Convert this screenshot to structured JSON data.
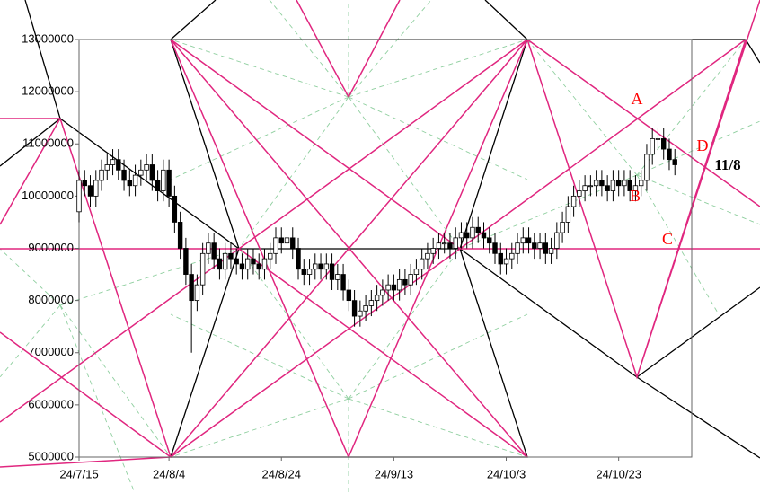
{
  "chart_data": {
    "type": "candlestick",
    "x": [
      "24/7/19",
      "24/7/20",
      "24/7/21",
      "24/7/22",
      "24/7/23",
      "24/7/24",
      "24/7/25",
      "24/7/26",
      "24/7/27",
      "24/7/28",
      "24/7/29",
      "24/7/30",
      "24/7/31",
      "24/8/1",
      "24/8/2",
      "24/8/3",
      "24/8/4",
      "24/8/5",
      "24/8/6",
      "24/8/7",
      "24/8/8",
      "24/8/9",
      "24/8/10",
      "24/8/11",
      "24/8/12",
      "24/8/13",
      "24/8/14",
      "24/8/15",
      "24/8/16",
      "24/8/17",
      "24/8/18",
      "24/8/19",
      "24/8/20",
      "24/8/21",
      "24/8/22",
      "24/8/23",
      "24/8/24",
      "24/8/25",
      "24/8/26",
      "24/8/27",
      "24/8/28",
      "24/8/29",
      "24/8/30",
      "24/8/31",
      "24/9/1",
      "24/9/2",
      "24/9/3",
      "24/9/4",
      "24/9/5",
      "24/9/6",
      "24/9/7",
      "24/9/8",
      "24/9/9",
      "24/9/10",
      "24/9/11",
      "24/9/12",
      "24/9/13",
      "24/9/14",
      "24/9/15",
      "24/9/16",
      "24/9/17",
      "24/9/18",
      "24/9/19",
      "24/9/20",
      "24/9/21",
      "24/9/22",
      "24/9/23",
      "24/9/24",
      "24/9/25",
      "24/9/26",
      "24/9/27",
      "24/9/28",
      "24/9/29",
      "24/9/30",
      "24/10/1",
      "24/10/2",
      "24/10/3",
      "24/10/4",
      "24/10/5",
      "24/10/6",
      "24/10/7",
      "24/10/8",
      "24/10/9",
      "24/10/10",
      "24/10/11",
      "24/10/12",
      "24/10/13",
      "24/10/14",
      "24/10/15",
      "24/10/16",
      "24/10/17",
      "24/10/18",
      "24/10/19",
      "24/10/20",
      "24/10/21",
      "24/10/22",
      "24/10/23",
      "24/10/24",
      "24/10/25",
      "24/10/26",
      "24/10/27",
      "24/10/28",
      "24/10/29",
      "24/10/30",
      "24/10/31",
      "24/11/1",
      "24/11/2"
    ],
    "open": [
      9700000,
      10300000,
      10200000,
      10000000,
      10300000,
      10500000,
      10600000,
      10700000,
      10500000,
      10300000,
      10200000,
      10400000,
      10500000,
      10600000,
      10300000,
      10100000,
      10500000,
      10000000,
      9500000,
      9000000,
      8500000,
      8000000,
      8300000,
      8900000,
      9100000,
      8800000,
      8600000,
      8900000,
      8800000,
      8700000,
      8600000,
      8800000,
      8700000,
      8600000,
      8800000,
      8900000,
      9200000,
      9100000,
      9200000,
      9000000,
      8600000,
      8500000,
      8600000,
      8700000,
      8600000,
      8700000,
      8400000,
      8500000,
      8200000,
      8000000,
      7700000,
      7800000,
      7900000,
      8000000,
      8100000,
      8200000,
      8300000,
      8200000,
      8400000,
      8300000,
      8500000,
      8600000,
      8800000,
      8900000,
      9000000,
      9100000,
      9100000,
      9000000,
      9200000,
      9300000,
      9200000,
      9400000,
      9300000,
      9200000,
      9100000,
      8900000,
      8700000,
      8800000,
      8900000,
      9100000,
      9200000,
      9100000,
      9000000,
      9100000,
      8900000,
      9000000,
      9300000,
      9500000,
      9800000,
      10000000,
      10100000,
      10200000,
      10200000,
      10300000,
      10200000,
      10100000,
      10300000,
      10200000,
      10300000,
      10100000,
      10200000,
      10300000,
      10800000,
      11100000,
      11100000,
      10900000,
      10700000
    ],
    "high": [
      10500000,
      10500000,
      10400000,
      10500000,
      10700000,
      10800000,
      10900000,
      10900000,
      10700000,
      10500000,
      10600000,
      10700000,
      10800000,
      10800000,
      10500000,
      10700000,
      10700000,
      10200000,
      9700000,
      9200000,
      8700000,
      8500000,
      9100000,
      9300000,
      9300000,
      9000000,
      9100000,
      9100000,
      9000000,
      8900000,
      9000000,
      9000000,
      8900000,
      9000000,
      9100000,
      9400000,
      9400000,
      9400000,
      9400000,
      9200000,
      8800000,
      8800000,
      8900000,
      8900000,
      8900000,
      8900000,
      8700000,
      8700000,
      8400000,
      8200000,
      8000000,
      8100000,
      8200000,
      8300000,
      8400000,
      8500000,
      8500000,
      8600000,
      8600000,
      8700000,
      8800000,
      9000000,
      9100000,
      9200000,
      9300000,
      9300000,
      9300000,
      9400000,
      9500000,
      9500000,
      9600000,
      9600000,
      9500000,
      9400000,
      9300000,
      9100000,
      9000000,
      9100000,
      9300000,
      9400000,
      9400000,
      9300000,
      9300000,
      9300000,
      9200000,
      9500000,
      9700000,
      10000000,
      10200000,
      10300000,
      10400000,
      10400000,
      10500000,
      10500000,
      10400000,
      10500000,
      10500000,
      10500000,
      10500000,
      10400000,
      10500000,
      11000000,
      11300000,
      11300000,
      11300000,
      11100000,
      10900000
    ],
    "low": [
      9500000,
      10000000,
      9800000,
      9800000,
      10100000,
      10300000,
      10400000,
      10300000,
      10100000,
      10000000,
      10000000,
      10200000,
      10300000,
      10100000,
      9900000,
      9900000,
      9800000,
      9300000,
      8800000,
      8300000,
      7000000,
      7800000,
      8100000,
      8700000,
      8600000,
      8400000,
      8400000,
      8600000,
      8500000,
      8400000,
      8400000,
      8500000,
      8400000,
      8400000,
      8600000,
      8700000,
      8900000,
      8900000,
      8800000,
      8400000,
      8300000,
      8300000,
      8400000,
      8400000,
      8400000,
      8200000,
      8200000,
      8000000,
      7800000,
      7500000,
      7500000,
      7600000,
      7700000,
      7800000,
      7900000,
      8000000,
      8000000,
      8000000,
      8100000,
      8100000,
      8300000,
      8400000,
      8600000,
      8700000,
      8800000,
      8900000,
      8800000,
      8800000,
      9000000,
      9000000,
      9000000,
      9100000,
      9000000,
      8900000,
      8700000,
      8500000,
      8500000,
      8600000,
      8700000,
      8900000,
      8900000,
      8800000,
      8800000,
      8700000,
      8700000,
      8800000,
      9100000,
      9300000,
      9600000,
      9800000,
      9900000,
      10000000,
      10000000,
      10000000,
      9900000,
      9900000,
      10000000,
      10000000,
      9900000,
      9900000,
      10000000,
      10100000,
      10600000,
      10900000,
      10700000,
      10500000,
      10400000
    ],
    "close": [
      10300000,
      10200000,
      10000000,
      10300000,
      10500000,
      10600000,
      10700000,
      10500000,
      10300000,
      10200000,
      10400000,
      10500000,
      10600000,
      10300000,
      10100000,
      10500000,
      10000000,
      9500000,
      9000000,
      8500000,
      8000000,
      8300000,
      8900000,
      9100000,
      8800000,
      8600000,
      8900000,
      8800000,
      8700000,
      8600000,
      8800000,
      8700000,
      8600000,
      8800000,
      8900000,
      9200000,
      9100000,
      9200000,
      9000000,
      8600000,
      8500000,
      8600000,
      8700000,
      8600000,
      8700000,
      8400000,
      8500000,
      8200000,
      8000000,
      7700000,
      7800000,
      7900000,
      8000000,
      8100000,
      8200000,
      8300000,
      8200000,
      8400000,
      8300000,
      8500000,
      8600000,
      8800000,
      8900000,
      9000000,
      9100000,
      9100000,
      9000000,
      9200000,
      9300000,
      9200000,
      9400000,
      9300000,
      9200000,
      9100000,
      8900000,
      8700000,
      8800000,
      8900000,
      9100000,
      9200000,
      9100000,
      9000000,
      9100000,
      8900000,
      9000000,
      9300000,
      9500000,
      9800000,
      10000000,
      10100000,
      10200000,
      10200000,
      10300000,
      10200000,
      10100000,
      10300000,
      10200000,
      10300000,
      10100000,
      10200000,
      10300000,
      10800000,
      11100000,
      11100000,
      10900000,
      10700000,
      10600000
    ],
    "xlim": [
      "24/7/19",
      "24/11/5"
    ],
    "xticks": [
      "24/7/15",
      "24/8/4",
      "24/8/24",
      "24/9/13",
      "24/10/3",
      "24/10/23"
    ],
    "ylim": [
      5000000,
      13000000
    ],
    "yticks": [
      5000000,
      6000000,
      7000000,
      8000000,
      9000000,
      10000000,
      11000000,
      12000000,
      13000000
    ],
    "annotations": [
      "A",
      "B",
      "C",
      "D",
      "11/8"
    ]
  }
}
